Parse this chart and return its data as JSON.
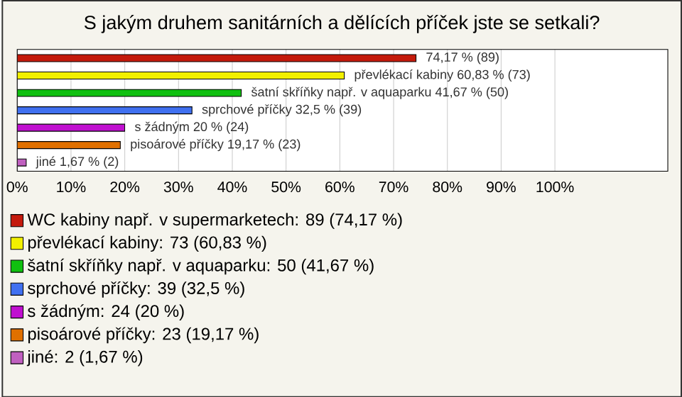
{
  "chart_data": {
    "type": "bar",
    "orientation": "horizontal",
    "title": "S jakým druhem sanitárních a dělících příček jste se setkali?",
    "categories": [
      null,
      null,
      null,
      null,
      null,
      null,
      null
    ],
    "series": [
      {
        "name": "WC kabiny např. v supermarketech: 89 (74,17 %)",
        "color": "#c41a0c",
        "values": [
          74.17,
          null,
          null,
          null,
          null,
          null,
          null
        ],
        "value_labels": [
          "74,17 % (89)",
          null,
          null,
          null,
          null,
          null,
          null
        ]
      },
      {
        "name": "převlékací kabiny: 73 (60,83 %)",
        "color": "#f2f000",
        "values": [
          null,
          60.83,
          null,
          null,
          null,
          null,
          null
        ],
        "value_labels": [
          null,
          "převlékací kabiny 60,83 % (73)",
          null,
          null,
          null,
          null,
          null
        ]
      },
      {
        "name": "šatní skříňky např. v aquaparku: 50 (41,67 %)",
        "color": "#10c010",
        "values": [
          null,
          null,
          41.67,
          null,
          null,
          null,
          null
        ],
        "value_labels": [
          null,
          null,
          "šatní skříňky např. v aquaparku 41,67 % (50)",
          null,
          null,
          null,
          null
        ]
      },
      {
        "name": "sprchové příčky: 39 (32,5 %)",
        "color": "#4070f0",
        "values": [
          null,
          null,
          null,
          32.5,
          null,
          null,
          null
        ],
        "value_labels": [
          null,
          null,
          null,
          "sprchové příčky 32,5 % (39)",
          null,
          null,
          null
        ]
      },
      {
        "name": "s žádným: 24 (20 %)",
        "color": "#c010d0",
        "values": [
          null,
          null,
          null,
          null,
          20,
          null,
          null
        ],
        "value_labels": [
          null,
          null,
          null,
          null,
          "s žádným 20 % (24)",
          null,
          null
        ]
      },
      {
        "name": "pisoárové příčky: 23 (19,17 %)",
        "color": "#e07000",
        "values": [
          null,
          null,
          null,
          null,
          null,
          19.17,
          null
        ],
        "value_labels": [
          null,
          null,
          null,
          null,
          null,
          "pisoárové příčky 19,17 % (23)",
          null
        ]
      },
      {
        "name": "jiné: 2 (1,67 %)",
        "color": "#c060c0",
        "values": [
          null,
          null,
          null,
          null,
          null,
          null,
          1.67
        ],
        "value_labels": [
          null,
          null,
          null,
          null,
          null,
          null,
          "jiné 1,67 % (2)"
        ]
      }
    ],
    "xlim": [
      0,
      121
    ],
    "xticks": [
      {
        "value": 0,
        "label": "0%"
      },
      {
        "value": 10,
        "label": "10%"
      },
      {
        "value": 20,
        "label": "20%"
      },
      {
        "value": 30,
        "label": "30%"
      },
      {
        "value": 40,
        "label": "40%"
      },
      {
        "value": 50,
        "label": "50%"
      },
      {
        "value": 60,
        "label": "60%"
      },
      {
        "value": 70,
        "label": "70%"
      },
      {
        "value": 80,
        "label": "80%"
      },
      {
        "value": 90,
        "label": "90%"
      },
      {
        "value": 100,
        "label": "100%"
      }
    ],
    "grid": "x",
    "legend": "bottom",
    "tick_labels": "x"
  }
}
